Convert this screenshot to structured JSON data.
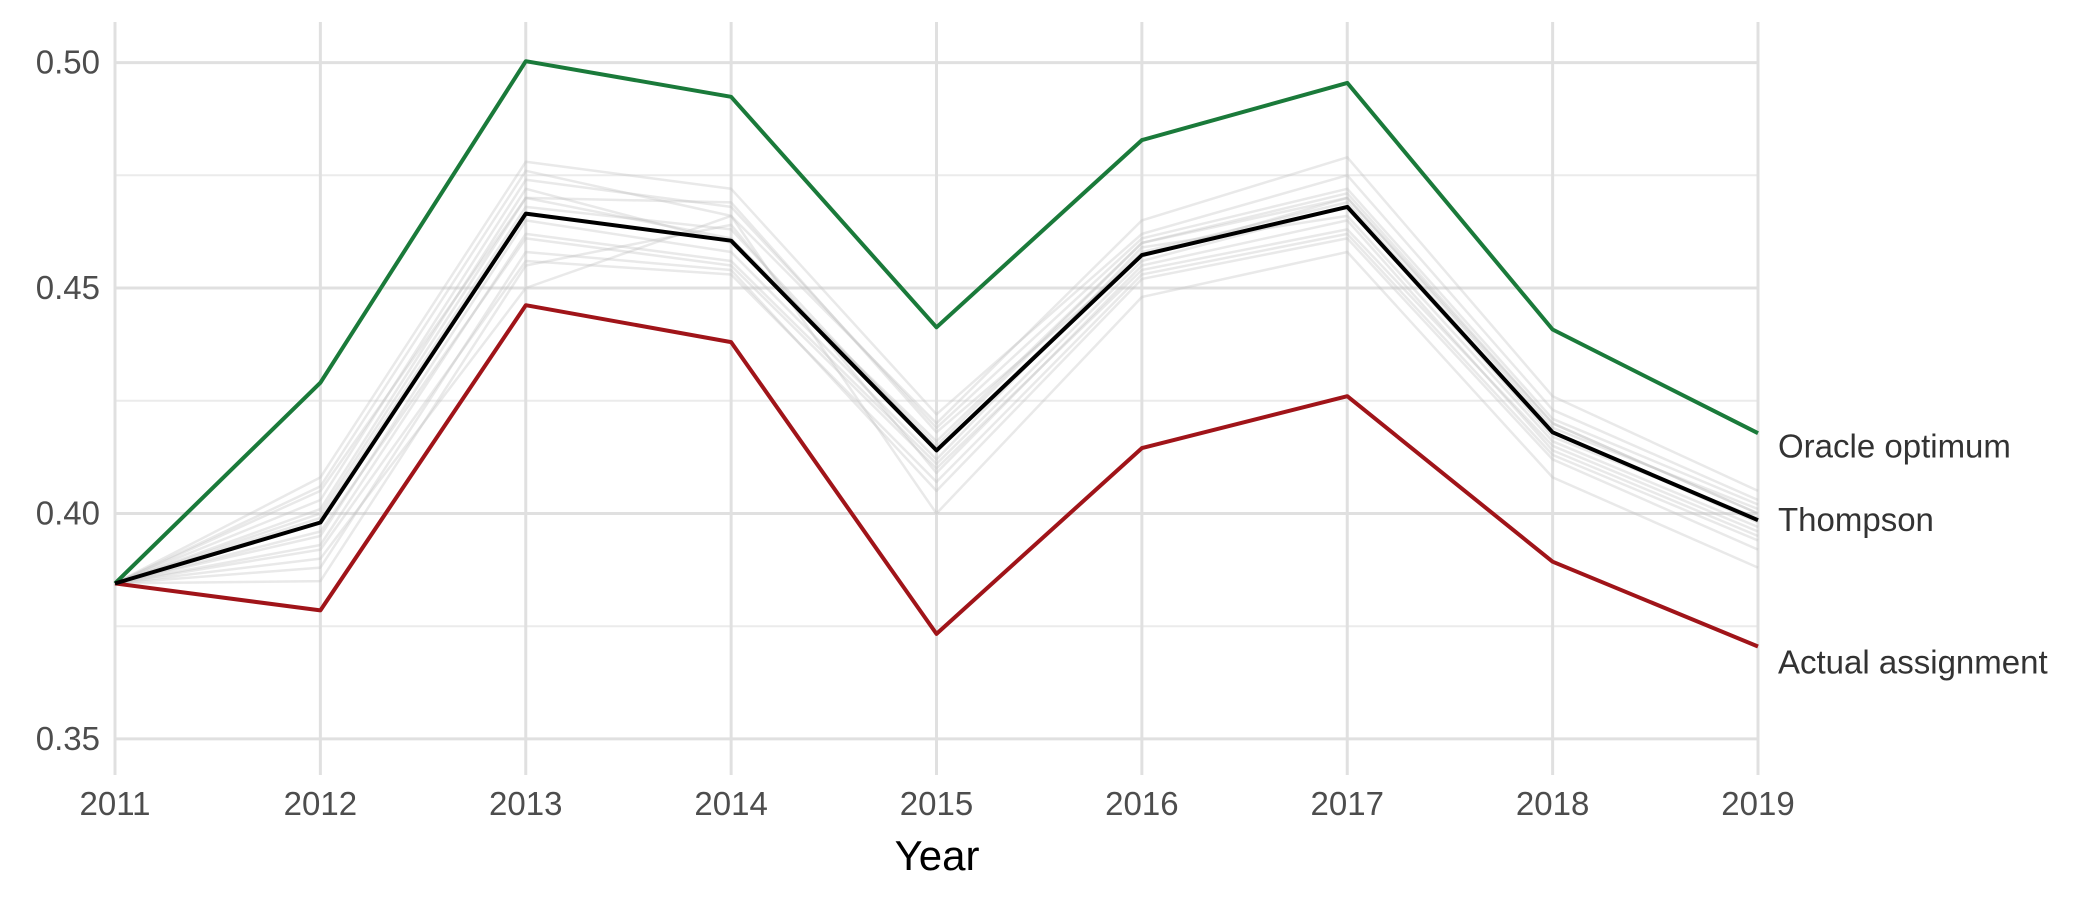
{
  "chart_data": {
    "type": "line",
    "title": "",
    "xlabel": "Year",
    "ylabel": "",
    "x": [
      2011,
      2012,
      2013,
      2014,
      2015,
      2016,
      2017,
      2018,
      2019
    ],
    "xlim": [
      2011,
      2019
    ],
    "ylim": [
      0.342,
      0.509
    ],
    "yticks": [
      0.35,
      0.4,
      0.45,
      0.5
    ],
    "ytick_labels": [
      "0.35",
      "0.40",
      "0.45",
      "0.50"
    ],
    "grid": true,
    "legend": "direct labels at right end of lines",
    "series": [
      {
        "name": "Oracle optimum",
        "color": "#1a7a3a",
        "values": [
          0.3845,
          0.429,
          0.5003,
          0.4924,
          0.4413,
          0.4828,
          0.4955,
          0.4408,
          0.4178
        ]
      },
      {
        "name": "Thompson",
        "color": "#000000",
        "values": [
          0.3845,
          0.398,
          0.4665,
          0.4605,
          0.414,
          0.4573,
          0.468,
          0.418,
          0.3985
        ]
      },
      {
        "name": "Actual assignment",
        "color": "#a01419",
        "values": [
          0.3845,
          0.3785,
          0.4462,
          0.438,
          0.3733,
          0.4145,
          0.426,
          0.3893,
          0.3705
        ]
      }
    ],
    "simulation_runs": {
      "color": "#bfbfbf",
      "values": [
        [
          0.3845,
          0.405,
          0.47,
          0.469,
          0.418,
          0.457,
          0.47,
          0.42,
          0.4
        ],
        [
          0.3845,
          0.395,
          0.465,
          0.458,
          0.412,
          0.459,
          0.466,
          0.416,
          0.397
        ],
        [
          0.3845,
          0.408,
          0.478,
          0.472,
          0.422,
          0.462,
          0.475,
          0.423,
          0.403
        ],
        [
          0.3845,
          0.388,
          0.458,
          0.454,
          0.405,
          0.452,
          0.461,
          0.412,
          0.392
        ],
        [
          0.3845,
          0.385,
          0.455,
          0.464,
          0.409,
          0.455,
          0.465,
          0.414,
          0.395
        ],
        [
          0.3845,
          0.401,
          0.472,
          0.46,
          0.416,
          0.46,
          0.47,
          0.419,
          0.401
        ],
        [
          0.3845,
          0.393,
          0.462,
          0.456,
          0.411,
          0.456,
          0.468,
          0.417,
          0.399
        ],
        [
          0.3845,
          0.406,
          0.476,
          0.466,
          0.42,
          0.465,
          0.479,
          0.426,
          0.405
        ],
        [
          0.3845,
          0.39,
          0.45,
          0.466,
          0.4,
          0.448,
          0.458,
          0.408,
          0.388
        ],
        [
          0.3845,
          0.399,
          0.468,
          0.463,
          0.414,
          0.458,
          0.469,
          0.418,
          0.398
        ],
        [
          0.3845,
          0.396,
          0.461,
          0.455,
          0.41,
          0.454,
          0.463,
          0.415,
          0.396
        ],
        [
          0.3845,
          0.403,
          0.474,
          0.468,
          0.419,
          0.461,
          0.472,
          0.421,
          0.402
        ],
        [
          0.3845,
          0.392,
          0.456,
          0.453,
          0.407,
          0.453,
          0.462,
          0.413,
          0.394
        ],
        [
          0.3845,
          0.4,
          0.47,
          0.461,
          0.415,
          0.46,
          0.471,
          0.42,
          0.4
        ]
      ]
    }
  }
}
